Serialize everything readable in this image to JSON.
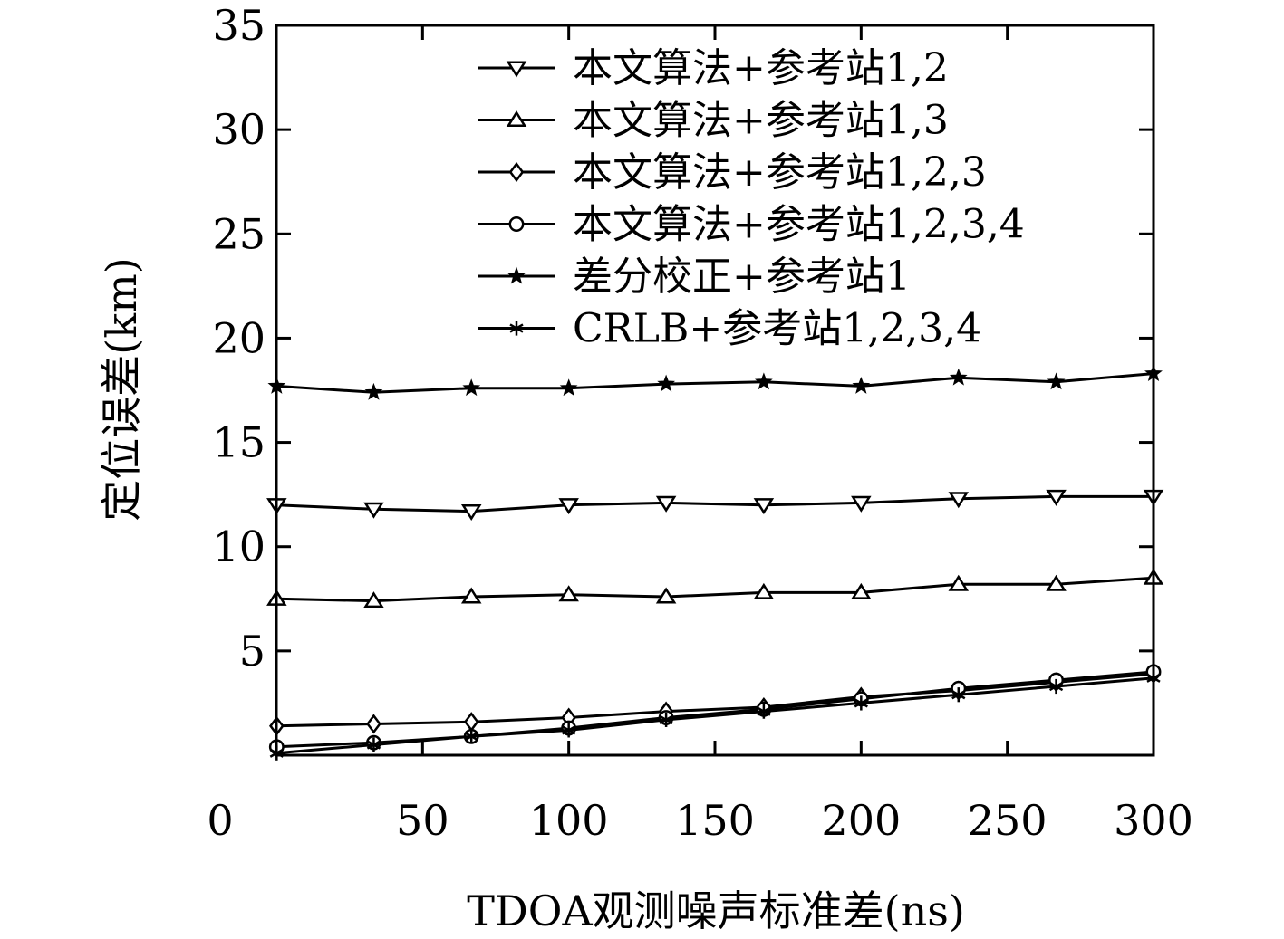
{
  "chart_data": {
    "type": "line",
    "title": "",
    "xlabel": "TDOA观测噪声标准差(ns)",
    "ylabel": "定位误差(km)",
    "xlim": [
      0,
      300
    ],
    "ylim": [
      0,
      35
    ],
    "xticks": [
      0,
      50,
      100,
      150,
      200,
      250,
      300
    ],
    "yticks": [
      5,
      10,
      15,
      20,
      25,
      30,
      35
    ],
    "xtick_labels": [
      "0",
      "50",
      "100",
      "150",
      "200",
      "250",
      "300"
    ],
    "ytick_labels": [
      "5",
      "10",
      "15",
      "20",
      "25",
      "30",
      "35"
    ],
    "grid": false,
    "legend_position": "top-right",
    "x": [
      0.1,
      33.3,
      66.7,
      100,
      133.3,
      166.7,
      200,
      233.3,
      266.7,
      300
    ],
    "series": [
      {
        "name": "本文算法+参考站1,2",
        "marker": "triangle-down",
        "values": [
          12.0,
          11.8,
          11.7,
          12.0,
          12.1,
          12.0,
          12.1,
          12.3,
          12.4,
          12.4
        ]
      },
      {
        "name": "本文算法+参考站1,3",
        "marker": "triangle-up",
        "values": [
          7.5,
          7.4,
          7.6,
          7.7,
          7.6,
          7.8,
          7.8,
          8.2,
          8.2,
          8.5
        ]
      },
      {
        "name": "本文算法+参考站1,2,3",
        "marker": "diamond",
        "values": [
          1.4,
          1.5,
          1.6,
          1.8,
          2.1,
          2.3,
          2.8,
          3.1,
          3.5,
          3.9
        ]
      },
      {
        "name": "本文算法+参考站1,2,3,4",
        "marker": "circle",
        "values": [
          0.4,
          0.6,
          0.9,
          1.3,
          1.8,
          2.2,
          2.7,
          3.2,
          3.6,
          4.0
        ]
      },
      {
        "name": "差分校正+参考站1",
        "marker": "star",
        "values": [
          17.7,
          17.4,
          17.6,
          17.6,
          17.8,
          17.9,
          17.7,
          18.1,
          17.9,
          18.3
        ]
      },
      {
        "name": "CRLB+参考站1,2,3,4",
        "marker": "asterisk",
        "values": [
          0.1,
          0.5,
          0.9,
          1.2,
          1.7,
          2.1,
          2.5,
          2.9,
          3.3,
          3.7
        ]
      }
    ]
  }
}
